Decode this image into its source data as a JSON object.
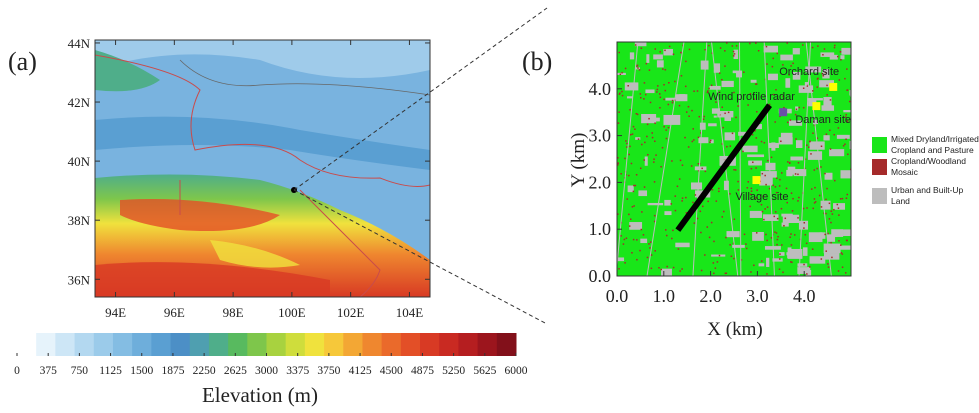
{
  "panel_a": {
    "label": "(a)",
    "xlim": [
      93.3,
      104.7
    ],
    "ylim": [
      35.4,
      44.1
    ],
    "xticks": [
      {
        "value": 94,
        "label": "94E"
      },
      {
        "value": 96,
        "label": "96E"
      },
      {
        "value": 98,
        "label": "98E"
      },
      {
        "value": 100,
        "label": "100E"
      },
      {
        "value": 102,
        "label": "102E"
      },
      {
        "value": 104,
        "label": "104E"
      }
    ],
    "yticks": [
      {
        "value": 36,
        "label": "36N"
      },
      {
        "value": 38,
        "label": "38N"
      },
      {
        "value": 40,
        "label": "40N"
      },
      {
        "value": 42,
        "label": "42N"
      },
      {
        "value": 44,
        "label": "44N"
      }
    ],
    "colorbar": {
      "title": "Elevation (m)",
      "lim": [
        0,
        6000
      ],
      "ticks": [
        0,
        375,
        750,
        1125,
        1500,
        1875,
        2250,
        2625,
        3000,
        3375,
        3750,
        4125,
        4500,
        4875,
        5250,
        5625,
        6000
      ],
      "colors": [
        "#ffffff",
        "#e6f3fb",
        "#cde6f6",
        "#b3d8f0",
        "#9bcbea",
        "#84bde3",
        "#6eaedb",
        "#5a9fd2",
        "#4c8fc6",
        "#4f9fb0",
        "#4fae8a",
        "#58ba5f",
        "#7ec64b",
        "#a8d23f",
        "#cfdd3c",
        "#f0e23d",
        "#f6c83a",
        "#f3a734",
        "#ef872f",
        "#ea6a2b",
        "#e34f27",
        "#d83a24",
        "#c92a22",
        "#b51e20",
        "#9c151d",
        "#82101a"
      ]
    }
  },
  "panel_b": {
    "label": "(b)",
    "xlim": [
      0,
      5
    ],
    "ylim": [
      0,
      5
    ],
    "xticks": [
      {
        "value": 0,
        "label": "0.0"
      },
      {
        "value": 1,
        "label": "1.0"
      },
      {
        "value": 2,
        "label": "2.0"
      },
      {
        "value": 3,
        "label": "3.0"
      },
      {
        "value": 4,
        "label": "4.0"
      }
    ],
    "yticks": [
      {
        "value": 0,
        "label": "0.0"
      },
      {
        "value": 1,
        "label": "1.0"
      },
      {
        "value": 2,
        "label": "2.0"
      },
      {
        "value": 3,
        "label": "3.0"
      },
      {
        "value": 4,
        "label": "4.0"
      }
    ],
    "xlabel": "X (km)",
    "ylabel": "Y (km)",
    "sites": [
      {
        "name": "Orchard site",
        "x": 4.62,
        "y": 4.04,
        "color": "#ffff00"
      },
      {
        "name": "Daman site",
        "x": 4.26,
        "y": 3.63,
        "color": "#ffff00"
      },
      {
        "name": "Wind profile radar",
        "x": 3.55,
        "y": 3.5,
        "color": "#6a4fa8"
      },
      {
        "name": "Village site",
        "x": 2.98,
        "y": 2.05,
        "color": "#ffff00"
      }
    ],
    "transect": {
      "x": [
        1.3,
        3.26
      ],
      "y": [
        0.98,
        3.65
      ]
    },
    "legend": [
      {
        "lines": [
          "Mixed Dryland/Irrigated",
          "Cropland and Pasture"
        ],
        "color": "#19e619"
      },
      {
        "lines": [
          "Cropland/Woodland",
          "Mosaic"
        ],
        "color": "#a52a2a"
      },
      {
        "lines": [
          "Urban and Built-Up",
          "Land"
        ],
        "color": "#bdbdbd"
      }
    ]
  }
}
